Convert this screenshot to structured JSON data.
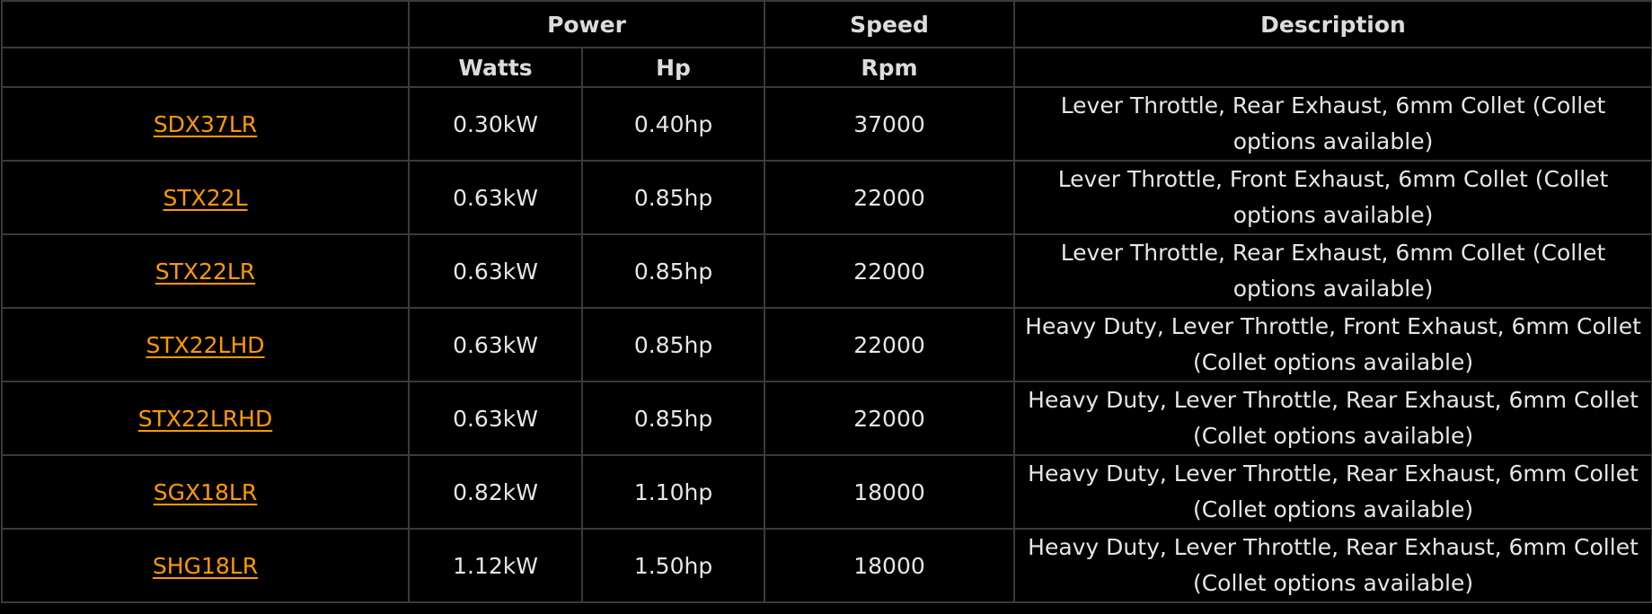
{
  "table": {
    "header_groups": {
      "power": "Power",
      "speed": "Speed",
      "description": "Description"
    },
    "subheaders": {
      "watts": "Watts",
      "hp": "Hp",
      "rpm": "Rpm"
    },
    "rows": [
      {
        "model": "SDX37LR",
        "watts": "0.30kW",
        "hp": "0.40hp",
        "rpm": "37000",
        "description": "Lever Throttle, Rear Exhaust, 6mm Collet (Collet options available)"
      },
      {
        "model": "STX22L",
        "watts": "0.63kW",
        "hp": "0.85hp",
        "rpm": "22000",
        "description": "Lever Throttle, Front Exhaust, 6mm Collet (Collet options available)"
      },
      {
        "model": "STX22LR",
        "watts": "0.63kW",
        "hp": "0.85hp",
        "rpm": "22000",
        "description": "Lever Throttle, Rear Exhaust, 6mm Collet (Collet options available)"
      },
      {
        "model": "STX22LHD",
        "watts": "0.63kW",
        "hp": "0.85hp",
        "rpm": "22000",
        "description": "Heavy Duty, Lever Throttle, Front Exhaust, 6mm Collet (Collet options available)"
      },
      {
        "model": "STX22LRHD",
        "watts": "0.63kW",
        "hp": "0.85hp",
        "rpm": "22000",
        "description": "Heavy Duty, Lever Throttle, Rear Exhaust, 6mm Collet (Collet options available)"
      },
      {
        "model": "SGX18LR",
        "watts": "0.82kW",
        "hp": "1.10hp",
        "rpm": "18000",
        "description": "Heavy Duty, Lever Throttle, Rear Exhaust, 6mm Collet (Collet options available)"
      },
      {
        "model": "SHG18LR",
        "watts": "1.12kW",
        "hp": "1.50hp",
        "rpm": "18000",
        "description": "Heavy Duty, Lever Throttle, Rear Exhaust, 6mm Collet (Collet options available)"
      }
    ]
  },
  "colors": {
    "background": "#000000",
    "border": "#3a3a3a",
    "text": "#e6e6e6",
    "link": "#ff9900"
  }
}
